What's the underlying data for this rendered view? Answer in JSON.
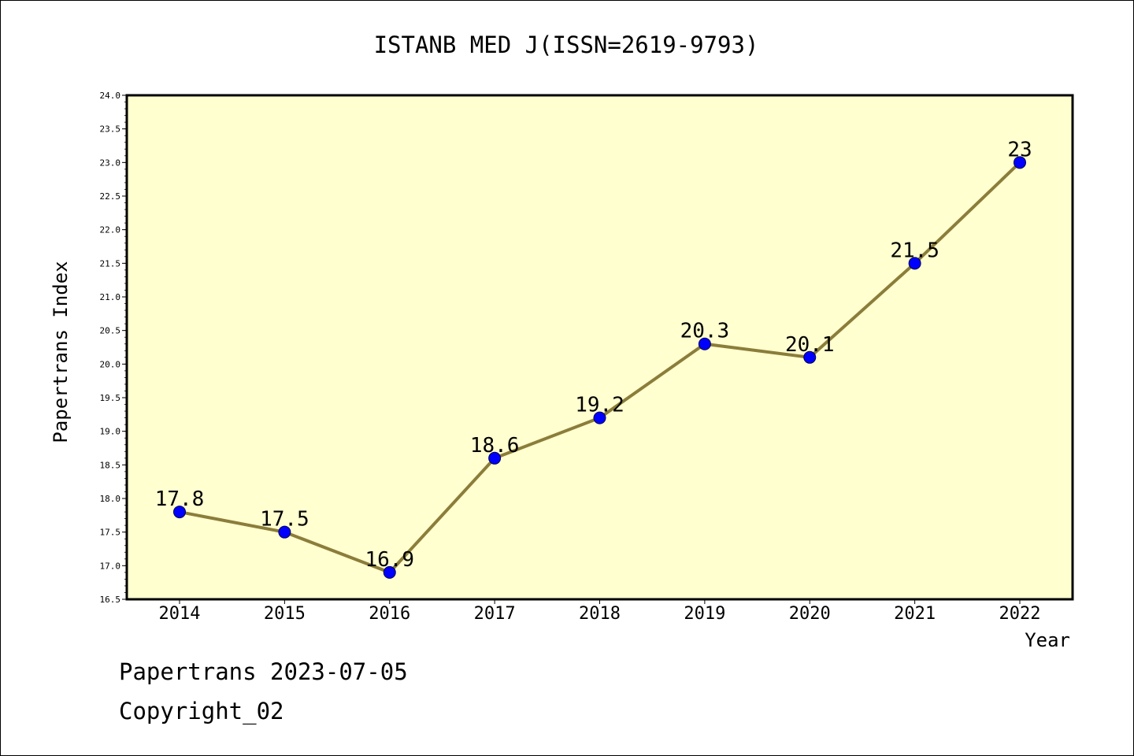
{
  "chart_data": {
    "type": "line",
    "title": "ISTANB MED J(ISSN=2619-9793)",
    "xlabel": "Year",
    "ylabel": "Papertrans Index",
    "categories": [
      "2014",
      "2015",
      "2016",
      "2017",
      "2018",
      "2019",
      "2020",
      "2021",
      "2022"
    ],
    "series": [
      {
        "values": [
          17.8,
          17.5,
          16.9,
          18.6,
          19.2,
          20.3,
          20.1,
          21.5,
          23
        ],
        "labels": [
          "17.8",
          "17.5",
          "16.9",
          "18.6",
          "19.2",
          "20.3",
          "20.1",
          "21.5",
          "23"
        ]
      }
    ],
    "ylim": [
      16.5,
      24.0
    ],
    "yticks": [
      "16.5",
      "17.0",
      "17.5",
      "18.0",
      "18.5",
      "19.0",
      "19.5",
      "20.0",
      "20.5",
      "21.0",
      "21.5",
      "22.0",
      "22.5",
      "23.0",
      "23.5",
      "24.0"
    ],
    "grid": false,
    "colors": {
      "plot_background": "#ffffd0",
      "line": "#8b7d3a",
      "marker": "#0000ff"
    }
  },
  "footer": {
    "line1": "Papertrans 2023-07-05",
    "line2": "Copyright_02"
  }
}
